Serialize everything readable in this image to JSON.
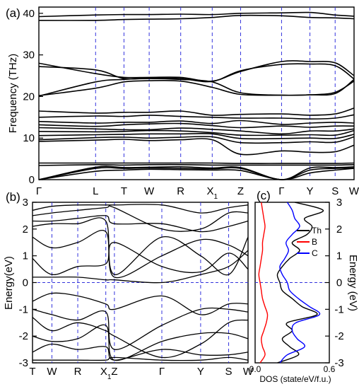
{
  "figure": {
    "panel_a_tag": "(a)",
    "panel_b_tag": "(b)",
    "panel_c_tag": "(c)"
  },
  "chart_data": [
    {
      "type": "line",
      "panel": "(a)",
      "ylabel": "Frequency (THz)",
      "xlabel": "",
      "ylim": [
        0,
        41.5
      ],
      "yticks": [
        0,
        10,
        20,
        30,
        40
      ],
      "grid": false,
      "path_points": [
        "Γ",
        "L",
        "T",
        "W",
        "R",
        "X1",
        "Z",
        "Γ",
        "Y",
        "S",
        "W"
      ],
      "path_positions": [
        0,
        0.18,
        0.27,
        0.35,
        0.45,
        0.55,
        0.64,
        0.77,
        0.86,
        0.94,
        1.0
      ],
      "series": [
        {
          "values": [
            38.3,
            38.3,
            38.5,
            38.6,
            38.7,
            39.0,
            39.5,
            39.4,
            39.0,
            38.9,
            38.7
          ]
        },
        {
          "values": [
            39.2,
            39.6,
            39.7,
            39.7,
            39.8,
            39.7,
            40.0,
            40.1,
            40.2,
            39.6,
            39.3
          ]
        },
        {
          "values": [
            28.0,
            25.5,
            24.6,
            24.6,
            24.6,
            23.7,
            26.0,
            28.4,
            28.4,
            28.1,
            25.0
          ]
        },
        {
          "values": [
            27.2,
            26.4,
            24.3,
            24.4,
            24.3,
            23.6,
            26.2,
            27.7,
            27.8,
            27.4,
            24.2
          ]
        },
        {
          "values": [
            20.1,
            23.5,
            24.1,
            24.3,
            24.1,
            23.5,
            20.9,
            20.3,
            20.4,
            20.7,
            24.1
          ]
        },
        {
          "values": [
            20.2,
            22.0,
            23.5,
            23.8,
            23.7,
            22.2,
            20.5,
            20.3,
            20.4,
            21.0,
            23.7
          ]
        },
        {
          "values": [
            16.5,
            16.0,
            16.2,
            16.2,
            16.5,
            15.5,
            15.7,
            15.8,
            15.5,
            15.8,
            17.2
          ]
        },
        {
          "values": [
            15.0,
            15.3,
            15.2,
            15.5,
            15.2,
            15.0,
            14.8,
            14.8,
            14.6,
            14.8,
            15.6
          ]
        },
        {
          "values": [
            14.0,
            13.6,
            13.8,
            13.8,
            14.1,
            13.5,
            14.2,
            13.3,
            13.6,
            13.8,
            13.6
          ]
        },
        {
          "values": [
            13.2,
            12.8,
            13.2,
            13.4,
            13.5,
            13.0,
            12.5,
            12.9,
            12.6,
            12.9,
            12.9
          ]
        },
        {
          "values": [
            12.5,
            12.2,
            12.0,
            12.0,
            12.4,
            12.1,
            11.7,
            11.0,
            11.7,
            11.7,
            12.2
          ]
        },
        {
          "values": [
            11.6,
            11.5,
            11.6,
            11.8,
            11.7,
            11.3,
            10.7,
            10.7,
            10.8,
            10.7,
            11.8
          ]
        },
        {
          "values": [
            10.6,
            10.8,
            10.9,
            11.0,
            11.0,
            11.0,
            9.9,
            9.9,
            10.0,
            9.9,
            10.9
          ]
        },
        {
          "values": [
            9.6,
            10.1,
            10.2,
            10.0,
            10.2,
            10.3,
            8.9,
            8.9,
            9.1,
            9.0,
            10.3
          ]
        },
        {
          "values": [
            9.2,
            9.5,
            9.7,
            9.4,
            9.6,
            9.6,
            6.1,
            6.9,
            6.6,
            6.7,
            8.3
          ]
        },
        {
          "values": [
            4.0,
            4.0,
            4.0,
            4.0,
            4.0,
            4.0,
            3.9,
            3.9,
            3.9,
            3.9,
            4.0
          ]
        },
        {
          "values": [
            3.4,
            3.6,
            3.5,
            3.6,
            3.6,
            3.5,
            3.5,
            3.5,
            3.5,
            3.5,
            3.6
          ]
        },
        {
          "values": [
            0,
            3.0,
            2.9,
            3.0,
            3.1,
            2.8,
            2.9,
            0,
            2.8,
            2.9,
            3.1
          ]
        },
        {
          "values": [
            0,
            2.7,
            2.7,
            2.8,
            2.7,
            2.6,
            2.7,
            0,
            2.3,
            2.7,
            2.8
          ]
        },
        {
          "values": [
            0,
            2.0,
            2.3,
            2.5,
            2.4,
            2.3,
            2.2,
            0,
            1.6,
            2.3,
            2.7
          ]
        }
      ]
    },
    {
      "type": "line",
      "panel": "(b)",
      "ylabel": "Energy(eV)",
      "xlabel": "",
      "ylim": [
        -3,
        3
      ],
      "yticks": [
        -3,
        -2,
        -1,
        0,
        1,
        2,
        3
      ],
      "grid": false,
      "path_points": [
        "T",
        "W",
        "R",
        "X1",
        "Z",
        "Γ",
        "Y",
        "S",
        "W"
      ],
      "path_positions": [
        0,
        0.09,
        0.21,
        0.34,
        0.38,
        0.6,
        0.78,
        0.91,
        1.0
      ],
      "series": [
        {
          "values": [
            2.7,
            2.85,
            2.9,
            2.9,
            2.9,
            2.9,
            2.6,
            2.8,
            2.9
          ]
        },
        {
          "values": [
            2.5,
            2.6,
            2.7,
            2.8,
            2.8,
            2.0,
            2.0,
            2.6,
            2.6
          ]
        },
        {
          "values": [
            2.3,
            2.3,
            2.4,
            2.5,
            2.2,
            2.2,
            1.9,
            2.1,
            2.3
          ]
        },
        {
          "values": [
            2.1,
            2.2,
            2.2,
            2.3,
            0.3,
            1.7,
            1.0,
            0.3,
            1.7
          ]
        },
        {
          "values": [
            1.7,
            1.3,
            1.5,
            1.9,
            0.2,
            1.0,
            1.6,
            1.4,
            1.0
          ]
        },
        {
          "values": [
            0.9,
            0.3,
            0.6,
            0.7,
            1.5,
            0.6,
            0.4,
            1.1,
            0.5
          ]
        },
        {
          "values": [
            0.2,
            0.2,
            0.2,
            0.1,
            0.1,
            0.0,
            0.3,
            0.6,
            1.2
          ]
        },
        {
          "values": [
            -0.7,
            -0.4,
            -0.5,
            -0.8,
            -1.0,
            -0.5,
            -1.2,
            -0.8,
            -0.8
          ]
        },
        {
          "values": [
            -1.0,
            -1.2,
            -1.4,
            -1.1,
            -2.5,
            -1.6,
            -1.0,
            -1.0,
            -1.1
          ]
        },
        {
          "values": [
            -1.3,
            -1.8,
            -1.5,
            -1.8,
            -2.0,
            -2.8,
            -2.3,
            -1.5,
            -1.4
          ]
        },
        {
          "values": [
            -2.0,
            -2.2,
            -2.1,
            -1.6,
            -2.9,
            -2.2,
            -1.9,
            -1.9,
            -2.1
          ]
        },
        {
          "values": [
            -2.6,
            -2.3,
            -2.5,
            -2.4,
            -2.9,
            -2.5,
            -2.7,
            -2.7,
            -2.6
          ]
        },
        {
          "values": [
            -2.9,
            -2.9,
            -2.9,
            -2.9,
            -2.8,
            -2.9,
            -2.9,
            -2.8,
            -2.9
          ]
        }
      ]
    },
    {
      "type": "line",
      "panel": "(c)",
      "ylabel": "Energy (eV)",
      "xlabel": "DOS (state/eV/f.u.)",
      "xlim": [
        0,
        0.6
      ],
      "xticks": [
        0.0,
        0.6
      ],
      "ylim": [
        -3,
        3
      ],
      "yticks": [
        -3,
        -2,
        -1,
        0,
        1,
        2,
        3
      ],
      "legend_position": "top-right",
      "energies": [
        -3.0,
        -2.7,
        -2.4,
        -2.1,
        -1.8,
        -1.5,
        -1.2,
        -0.9,
        -0.6,
        -0.3,
        0.0,
        0.3,
        0.6,
        0.9,
        1.2,
        1.5,
        1.8,
        2.1,
        2.4,
        2.7,
        3.0
      ],
      "series": [
        {
          "name": "Th",
          "color": "#000000",
          "values": [
            0.18,
            0.35,
            0.28,
            0.22,
            0.3,
            0.26,
            0.5,
            0.38,
            0.3,
            0.22,
            0.2,
            0.18,
            0.22,
            0.28,
            0.36,
            0.3,
            0.42,
            0.46,
            0.4,
            0.55,
            0.32
          ]
        },
        {
          "name": "B",
          "color": "#ff0000",
          "values": [
            0.04,
            0.08,
            0.06,
            0.05,
            0.07,
            0.09,
            0.1,
            0.08,
            0.06,
            0.05,
            0.04,
            0.03,
            0.04,
            0.05,
            0.06,
            0.06,
            0.07,
            0.08,
            0.07,
            0.06,
            0.05
          ]
        },
        {
          "name": "C",
          "color": "#0000ff",
          "values": [
            0.2,
            0.26,
            0.4,
            0.34,
            0.3,
            0.33,
            0.52,
            0.44,
            0.35,
            0.28,
            0.26,
            0.22,
            0.2,
            0.24,
            0.27,
            0.25,
            0.3,
            0.36,
            0.32,
            0.3,
            0.26
          ]
        }
      ]
    }
  ]
}
